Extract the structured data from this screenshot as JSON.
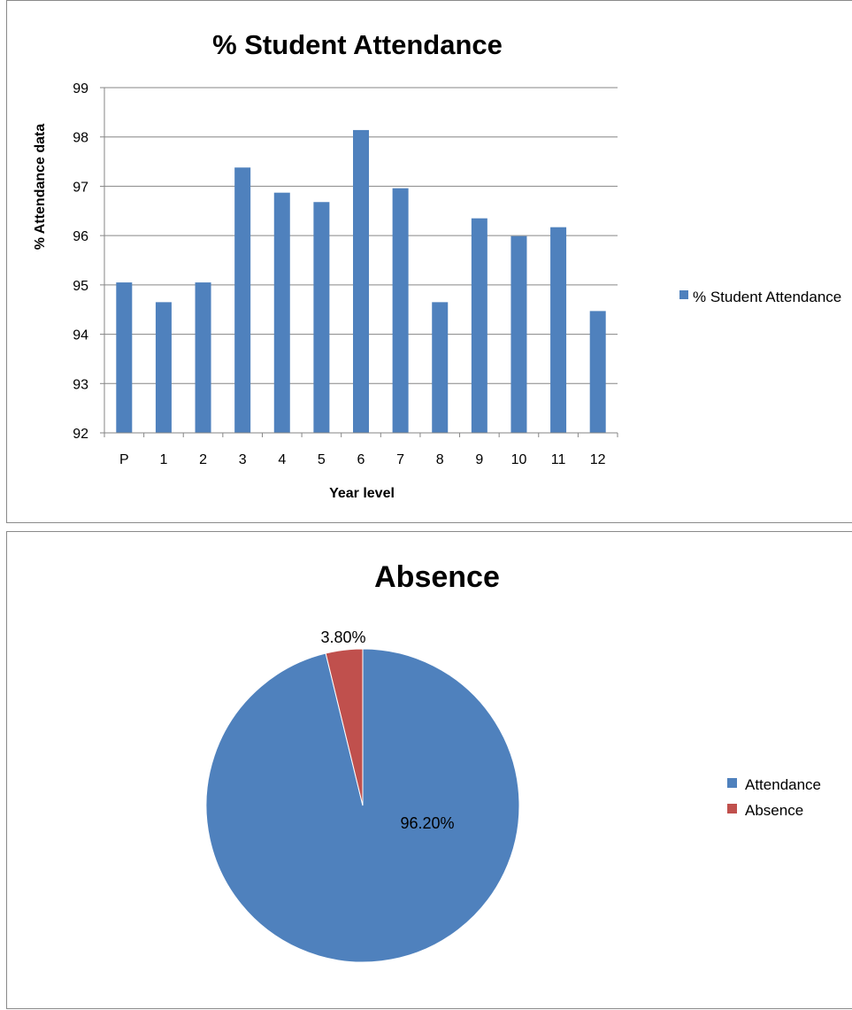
{
  "charts": {
    "bar": {
      "title": "% Student Attendance",
      "xlabel": "Year level",
      "ylabel": "% Attendance data",
      "legend_label": "% Student Attendance"
    },
    "pie": {
      "title": "Absence"
    }
  },
  "colors": {
    "blue": "#4f81bd",
    "red": "#c0504d",
    "grid": "#868686",
    "axis": "#868686"
  },
  "chart_data": [
    {
      "type": "bar",
      "title": "% Student Attendance",
      "xlabel": "Year level",
      "ylabel": "% Attendance data",
      "categories": [
        "P",
        "1",
        "2",
        "3",
        "4",
        "5",
        "6",
        "7",
        "8",
        "9",
        "10",
        "11",
        "12"
      ],
      "series": [
        {
          "name": "% Student Attendance",
          "values": [
            95.05,
            94.65,
            95.05,
            97.38,
            96.87,
            96.68,
            98.14,
            96.96,
            94.65,
            96.35,
            95.99,
            96.17,
            94.47
          ]
        }
      ],
      "ylim": [
        92,
        99
      ],
      "yticks": [
        "92",
        "93",
        "94",
        "95",
        "96",
        "97",
        "98",
        "99"
      ],
      "grid": true,
      "legend_position": "right"
    },
    {
      "type": "pie",
      "title": "Absence",
      "labels": [
        "Attendance",
        "Absence"
      ],
      "values": [
        96.2,
        3.8
      ],
      "data_labels": [
        "96.20%",
        "3.80%"
      ],
      "legend_position": "right"
    }
  ]
}
